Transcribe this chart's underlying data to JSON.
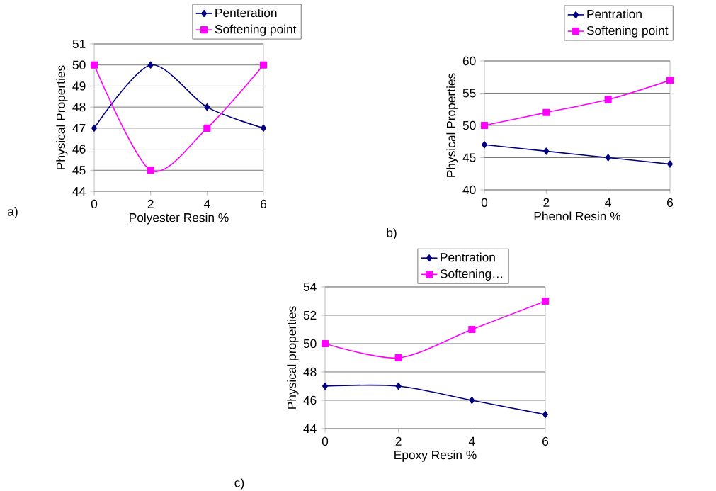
{
  "chart_data": [
    {
      "type": "line",
      "xlabel": "Polyester  Resin %",
      "ylabel": "Physical Properties",
      "x": [
        0,
        2,
        4,
        6
      ],
      "xlim": [
        0,
        6
      ],
      "xticks": [
        0,
        2,
        4,
        6
      ],
      "ylim": [
        44,
        51
      ],
      "yticks": [
        44,
        45,
        46,
        47,
        48,
        49,
        50,
        51
      ],
      "grid": "y",
      "legend": "top right",
      "annotations": [
        "a)"
      ],
      "series": [
        {
          "name": "Penteration",
          "color": "#000080",
          "marker": "diamond",
          "values": [
            47,
            50,
            48,
            47
          ]
        },
        {
          "name": "Softening point",
          "color": "#ff00ff",
          "marker": "square",
          "values": [
            50,
            45,
            47,
            50
          ]
        }
      ]
    },
    {
      "type": "line",
      "xlabel": "Phenol  Resin %",
      "ylabel": "Physical  Properties",
      "x": [
        0,
        2,
        4,
        6
      ],
      "xlim": [
        0,
        6
      ],
      "xticks": [
        0,
        2,
        4,
        6
      ],
      "ylim": [
        40,
        60
      ],
      "yticks": [
        40,
        45,
        50,
        55,
        60
      ],
      "grid": "y",
      "legend": "top right",
      "annotations": [
        "b)"
      ],
      "series": [
        {
          "name": "Pentration",
          "color": "#000080",
          "marker": "diamond",
          "values": [
            47,
            46,
            45,
            44
          ]
        },
        {
          "name": "Softening point",
          "color": "#ff00ff",
          "marker": "square",
          "values": [
            50,
            52,
            54,
            57
          ]
        }
      ]
    },
    {
      "type": "line",
      "xlabel": "Epoxy  Resin %",
      "ylabel": "Physical properties",
      "x": [
        0,
        2,
        4,
        6
      ],
      "xlim": [
        0,
        6
      ],
      "xticks": [
        0,
        2,
        4,
        6
      ],
      "ylim": [
        44,
        54
      ],
      "yticks": [
        44,
        46,
        48,
        50,
        52,
        54
      ],
      "grid": "y",
      "legend": "top right",
      "annotations": [
        "c)"
      ],
      "series": [
        {
          "name": "Pentration",
          "color": "#000080",
          "marker": "diamond",
          "values": [
            47,
            47,
            46,
            45
          ]
        },
        {
          "name": "Softening…",
          "color": "#ff00ff",
          "marker": "square",
          "values": [
            50,
            49,
            51,
            53
          ]
        }
      ]
    }
  ]
}
